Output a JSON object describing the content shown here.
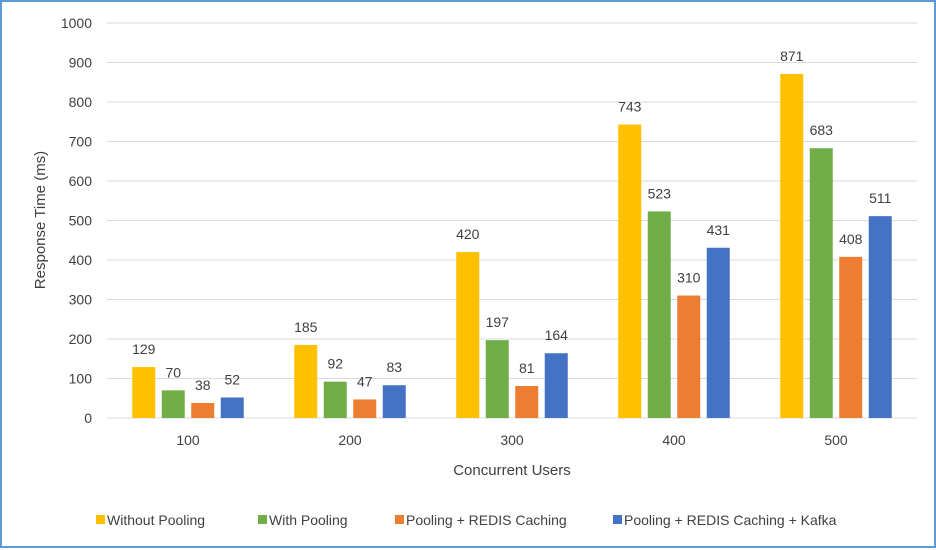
{
  "chart_data": {
    "type": "bar",
    "title": "",
    "xlabel": "Concurrent Users",
    "ylabel": "Response Time (ms)",
    "ylim": [
      0,
      1000
    ],
    "yticks": [
      0,
      100,
      200,
      300,
      400,
      500,
      600,
      700,
      800,
      900,
      1000
    ],
    "categories": [
      "100",
      "200",
      "300",
      "400",
      "500"
    ],
    "grid": true,
    "legend_position": "bottom",
    "data_labels": true,
    "series": [
      {
        "name": "Without Pooling",
        "color": "#ffc000",
        "values": [
          129,
          185,
          420,
          743,
          871
        ]
      },
      {
        "name": "With Pooling",
        "color": "#70ad47",
        "values": [
          70,
          92,
          197,
          523,
          683
        ]
      },
      {
        "name": "Pooling + REDIS Caching",
        "color": "#ed7d31",
        "values": [
          38,
          47,
          81,
          310,
          408
        ]
      },
      {
        "name": "Pooling + REDIS Caching + Kafka",
        "color": "#4472c4",
        "values": [
          52,
          83,
          164,
          431,
          511
        ]
      }
    ]
  },
  "frame_border_color": "#5b9bd5",
  "gridline_color": "#d9d9d9"
}
